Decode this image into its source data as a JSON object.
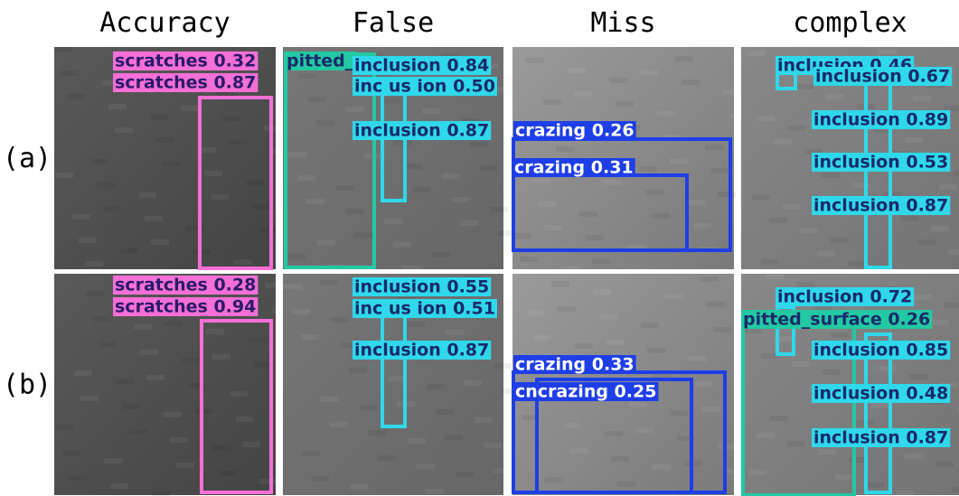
{
  "columns": [
    "Accuracy",
    "False",
    "Miss",
    "complex"
  ],
  "rows": [
    "(a)",
    "(b)"
  ],
  "panels": [
    {
      "detections": [
        "scratches 0.32",
        "scratches 0.87"
      ]
    },
    {
      "detections": [
        "pitted_",
        "inclusion 0.84",
        "inc us ion 0.50",
        "inclusion 0.87"
      ]
    },
    {
      "detections": [
        "crazing 0.26",
        "crazing 0.31"
      ]
    },
    {
      "detections": [
        "inclusion 0.46",
        "inclusion 0.67",
        "inclusion 0.89",
        "inclusion 0.53",
        "inclusion 0.87"
      ]
    },
    {
      "detections": [
        "scratches 0.28",
        "scratches 0.94"
      ]
    },
    {
      "detections": [
        "inclusion 0.55",
        "inc us ion 0.51",
        "inclusion 0.87"
      ]
    },
    {
      "detections": [
        "crazing 0.33",
        "cncrazing 0.25"
      ]
    },
    {
      "detections": [
        "inclusion 0.72",
        "pitted_surface 0.26",
        "inclusion 0.85",
        "inclusion 0.48",
        "inclusion 0.87"
      ]
    }
  ]
}
